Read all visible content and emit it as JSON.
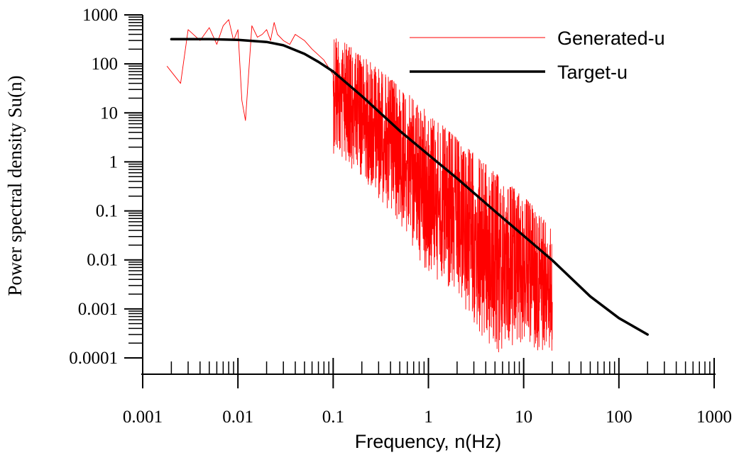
{
  "chart_data": {
    "type": "line",
    "xlabel": "Frequency, n(Hz)",
    "ylabel": "Power spectral density Su(n)",
    "x_scale": "log",
    "y_scale": "log",
    "xlim": [
      0.001,
      1000
    ],
    "ylim": [
      0.0001,
      1000
    ],
    "x_ticks": [
      "0.001",
      "0.01",
      "0.1",
      "1",
      "10",
      "100",
      "1000"
    ],
    "y_ticks": [
      "0.0001",
      "0.001",
      "0.01",
      "0.1",
      "1",
      "10",
      "100",
      "1000"
    ],
    "grid": false,
    "legend_position": "top-right",
    "series": [
      {
        "name": "Generated-u",
        "color": "#ff0000",
        "style": "thin noisy line",
        "x": [
          0.0018,
          0.0025,
          0.003,
          0.004,
          0.005,
          0.006,
          0.007,
          0.008,
          0.009,
          0.01,
          0.011,
          0.012,
          0.014,
          0.016,
          0.018,
          0.02,
          0.022,
          0.024,
          0.026,
          0.03,
          0.035,
          0.04,
          0.05,
          0.06,
          0.08,
          0.1,
          0.12,
          0.15,
          0.2,
          0.25,
          0.3,
          0.4,
          0.5,
          0.7,
          1,
          1.5,
          2,
          3,
          4,
          5,
          7,
          10,
          14,
          20
        ],
        "values": [
          90,
          40,
          500,
          300,
          550,
          250,
          600,
          800,
          300,
          500,
          18,
          7,
          600,
          350,
          400,
          500,
          300,
          700,
          400,
          300,
          250,
          400,
          300,
          200,
          120,
          60,
          25,
          15,
          8,
          4,
          2.5,
          1.2,
          0.7,
          0.3,
          0.12,
          0.06,
          0.03,
          0.015,
          0.01,
          0.008,
          0.006,
          0.005,
          0.004,
          0.0035
        ],
        "upper_envelope": {
          "x": [
            0.1,
            0.2,
            0.5,
            1,
            2,
            5,
            10,
            20
          ],
          "values": [
            400,
            150,
            35,
            10,
            3,
            0.6,
            0.2,
            0.045
          ]
        },
        "lower_envelope": {
          "x": [
            0.1,
            0.2,
            0.5,
            1,
            2,
            5,
            10,
            20
          ],
          "values": [
            1.5,
            0.5,
            0.05,
            0.005,
            0.0015,
            0.0001,
            0.0002,
            0.0001
          ]
        }
      },
      {
        "name": "Target-u",
        "color": "#000000",
        "style": "thick smooth line",
        "x": [
          0.002,
          0.005,
          0.01,
          0.02,
          0.03,
          0.05,
          0.07,
          0.1,
          0.2,
          0.5,
          1,
          2,
          5,
          10,
          20,
          50,
          100,
          200
        ],
        "values": [
          320,
          320,
          310,
          280,
          240,
          160,
          110,
          70,
          22,
          4.3,
          1.4,
          0.46,
          0.098,
          0.031,
          0.0098,
          0.0018,
          0.00065,
          0.0003
        ]
      }
    ]
  }
}
